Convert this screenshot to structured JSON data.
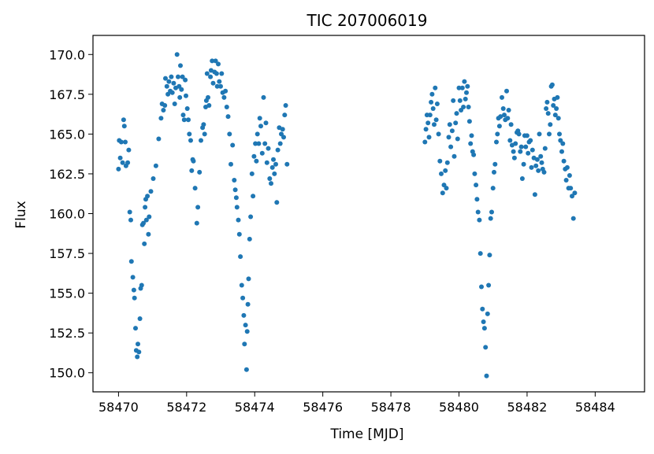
{
  "chart_data": {
    "type": "scatter",
    "title": "TIC 207006019",
    "xlabel": "Time [MJD]",
    "ylabel": "Flux",
    "xlim": [
      58469.25,
      58485.45
    ],
    "ylim": [
      148.8,
      171.2
    ],
    "x_ticks": [
      58470,
      58472,
      58474,
      58476,
      58478,
      58480,
      58482,
      58484
    ],
    "y_ticks": [
      150.0,
      152.5,
      155.0,
      157.5,
      160.0,
      162.5,
      165.0,
      167.5,
      170.0
    ],
    "x_tick_labels": [
      "58470",
      "58472",
      "58474",
      "58476",
      "58478",
      "58480",
      "58482",
      "58484"
    ],
    "y_tick_labels": [
      "150.0",
      "152.5",
      "155.0",
      "157.5",
      "160.0",
      "162.5",
      "165.0",
      "167.5",
      "170.0"
    ],
    "grid": false,
    "legend": "none",
    "marker_color": "#1f77b4",
    "series": [
      {
        "points": [
          [
            58470.0,
            162.8
          ],
          [
            58470.02,
            164.6
          ],
          [
            58470.05,
            163.5
          ],
          [
            58470.08,
            164.5
          ],
          [
            58470.12,
            163.2
          ],
          [
            58470.15,
            165.9
          ],
          [
            58470.17,
            165.5
          ],
          [
            58470.2,
            164.5
          ],
          [
            58470.22,
            163.0
          ],
          [
            58470.27,
            163.2
          ],
          [
            58470.3,
            164.0
          ],
          [
            58470.33,
            160.1
          ],
          [
            58470.36,
            159.6
          ],
          [
            58470.38,
            157.0
          ],
          [
            58470.42,
            156.0
          ],
          [
            58470.45,
            155.2
          ],
          [
            58470.47,
            154.7
          ],
          [
            58470.5,
            152.8
          ],
          [
            58470.52,
            151.4
          ],
          [
            58470.55,
            151.0
          ],
          [
            58470.57,
            151.8
          ],
          [
            58470.6,
            151.3
          ],
          [
            58470.63,
            153.4
          ],
          [
            58470.65,
            155.3
          ],
          [
            58470.68,
            155.5
          ],
          [
            58470.7,
            159.3
          ],
          [
            58470.73,
            159.4
          ],
          [
            58470.76,
            158.1
          ],
          [
            58470.78,
            160.4
          ],
          [
            58470.8,
            160.9
          ],
          [
            58470.82,
            159.6
          ],
          [
            58470.85,
            161.1
          ],
          [
            58470.88,
            158.7
          ],
          [
            58470.9,
            159.8
          ],
          [
            58470.95,
            161.4
          ],
          [
            58471.02,
            162.2
          ],
          [
            58471.1,
            163.0
          ],
          [
            58471.18,
            164.7
          ],
          [
            58471.25,
            166.0
          ],
          [
            58471.28,
            166.9
          ],
          [
            58471.32,
            166.5
          ],
          [
            58471.36,
            166.8
          ],
          [
            58471.38,
            168.5
          ],
          [
            58471.42,
            168.0
          ],
          [
            58471.45,
            167.5
          ],
          [
            58471.48,
            168.3
          ],
          [
            58471.52,
            167.7
          ],
          [
            58471.55,
            168.6
          ],
          [
            58471.58,
            167.6
          ],
          [
            58471.62,
            168.2
          ],
          [
            58471.65,
            166.9
          ],
          [
            58471.68,
            167.9
          ],
          [
            58471.72,
            170.0
          ],
          [
            58471.75,
            168.6
          ],
          [
            58471.78,
            168.0
          ],
          [
            58471.8,
            167.3
          ],
          [
            58471.82,
            169.3
          ],
          [
            58471.85,
            167.8
          ],
          [
            58471.88,
            168.6
          ],
          [
            58471.9,
            166.2
          ],
          [
            58471.93,
            165.9
          ],
          [
            58471.96,
            168.4
          ],
          [
            58471.98,
            167.4
          ],
          [
            58472.02,
            166.6
          ],
          [
            58472.05,
            165.9
          ],
          [
            58472.08,
            165.0
          ],
          [
            58472.12,
            164.6
          ],
          [
            58472.15,
            162.7
          ],
          [
            58472.18,
            163.4
          ],
          [
            58472.2,
            163.3
          ],
          [
            58472.25,
            161.6
          ],
          [
            58472.3,
            159.4
          ],
          [
            58472.33,
            160.4
          ],
          [
            58472.38,
            162.6
          ],
          [
            58472.42,
            164.6
          ],
          [
            58472.47,
            165.4
          ],
          [
            58472.5,
            165.6
          ],
          [
            58472.53,
            165.0
          ],
          [
            58472.56,
            166.7
          ],
          [
            58472.58,
            167.1
          ],
          [
            58472.6,
            168.8
          ],
          [
            58472.63,
            167.3
          ],
          [
            58472.66,
            166.8
          ],
          [
            58472.7,
            168.6
          ],
          [
            58472.72,
            169.0
          ],
          [
            58472.75,
            169.6
          ],
          [
            58472.78,
            168.2
          ],
          [
            58472.82,
            168.9
          ],
          [
            58472.85,
            169.6
          ],
          [
            58472.88,
            168.8
          ],
          [
            58472.9,
            168.0
          ],
          [
            58472.93,
            169.4
          ],
          [
            58472.96,
            168.3
          ],
          [
            58473.0,
            168.0
          ],
          [
            58473.03,
            168.8
          ],
          [
            58473.06,
            167.6
          ],
          [
            58473.1,
            167.3
          ],
          [
            58473.14,
            167.7
          ],
          [
            58473.18,
            166.7
          ],
          [
            58473.22,
            166.1
          ],
          [
            58473.26,
            165.0
          ],
          [
            58473.3,
            163.1
          ],
          [
            58473.35,
            164.3
          ],
          [
            58473.4,
            162.1
          ],
          [
            58473.43,
            161.5
          ],
          [
            58473.46,
            161.0
          ],
          [
            58473.48,
            160.4
          ],
          [
            58473.52,
            159.6
          ],
          [
            58473.55,
            158.7
          ],
          [
            58473.58,
            157.3
          ],
          [
            58473.62,
            155.5
          ],
          [
            58473.65,
            154.7
          ],
          [
            58473.68,
            153.6
          ],
          [
            58473.7,
            151.8
          ],
          [
            58473.73,
            153.0
          ],
          [
            58473.76,
            150.2
          ],
          [
            58473.78,
            152.6
          ],
          [
            58473.8,
            154.3
          ],
          [
            58473.82,
            155.9
          ],
          [
            58473.85,
            158.4
          ],
          [
            58473.88,
            159.8
          ],
          [
            58473.92,
            162.5
          ],
          [
            58473.95,
            161.1
          ],
          [
            58473.98,
            163.6
          ],
          [
            58474.02,
            164.4
          ],
          [
            58474.05,
            163.3
          ],
          [
            58474.08,
            165.0
          ],
          [
            58474.12,
            164.4
          ],
          [
            58474.15,
            166.0
          ],
          [
            58474.18,
            165.5
          ],
          [
            58474.22,
            163.8
          ],
          [
            58474.26,
            167.3
          ],
          [
            58474.3,
            164.4
          ],
          [
            58474.33,
            165.7
          ],
          [
            58474.36,
            163.2
          ],
          [
            58474.4,
            164.1
          ],
          [
            58474.44,
            162.2
          ],
          [
            58474.48,
            161.9
          ],
          [
            58474.52,
            162.9
          ],
          [
            58474.55,
            163.4
          ],
          [
            58474.58,
            162.5
          ],
          [
            58474.62,
            163.1
          ],
          [
            58474.65,
            160.7
          ],
          [
            58474.68,
            164.0
          ],
          [
            58474.72,
            165.4
          ],
          [
            58474.75,
            164.4
          ],
          [
            58474.78,
            165.0
          ],
          [
            58474.82,
            165.3
          ],
          [
            58474.85,
            164.8
          ],
          [
            58474.88,
            166.2
          ],
          [
            58474.91,
            166.8
          ],
          [
            58474.95,
            163.1
          ],
          [
            58479.0,
            164.5
          ],
          [
            58479.03,
            165.3
          ],
          [
            58479.06,
            166.2
          ],
          [
            58479.09,
            165.7
          ],
          [
            58479.12,
            164.8
          ],
          [
            58479.15,
            166.2
          ],
          [
            58479.18,
            167.0
          ],
          [
            58479.21,
            167.5
          ],
          [
            58479.24,
            166.6
          ],
          [
            58479.27,
            165.6
          ],
          [
            58479.3,
            167.9
          ],
          [
            58479.33,
            165.9
          ],
          [
            58479.36,
            166.9
          ],
          [
            58479.4,
            165.0
          ],
          [
            58479.44,
            163.3
          ],
          [
            58479.48,
            162.5
          ],
          [
            58479.52,
            161.3
          ],
          [
            58479.56,
            161.8
          ],
          [
            58479.6,
            162.7
          ],
          [
            58479.63,
            161.6
          ],
          [
            58479.66,
            163.2
          ],
          [
            58479.7,
            164.8
          ],
          [
            58479.73,
            165.6
          ],
          [
            58479.76,
            164.2
          ],
          [
            58479.8,
            165.2
          ],
          [
            58479.83,
            167.1
          ],
          [
            58479.86,
            163.6
          ],
          [
            58479.9,
            165.7
          ],
          [
            58479.93,
            166.3
          ],
          [
            58479.96,
            164.7
          ],
          [
            58480.0,
            167.9
          ],
          [
            58480.03,
            167.1
          ],
          [
            58480.06,
            166.5
          ],
          [
            58480.1,
            167.9
          ],
          [
            58480.13,
            166.7
          ],
          [
            58480.16,
            168.3
          ],
          [
            58480.19,
            167.2
          ],
          [
            58480.22,
            167.6
          ],
          [
            58480.25,
            168.0
          ],
          [
            58480.28,
            166.7
          ],
          [
            58480.31,
            165.8
          ],
          [
            58480.34,
            164.4
          ],
          [
            58480.37,
            164.9
          ],
          [
            58480.4,
            163.9
          ],
          [
            58480.43,
            163.7
          ],
          [
            58480.46,
            162.5
          ],
          [
            58480.5,
            161.8
          ],
          [
            58480.53,
            160.9
          ],
          [
            58480.56,
            160.1
          ],
          [
            58480.6,
            159.6
          ],
          [
            58480.63,
            157.5
          ],
          [
            58480.66,
            155.4
          ],
          [
            58480.69,
            154.0
          ],
          [
            58480.72,
            153.2
          ],
          [
            58480.75,
            152.8
          ],
          [
            58480.78,
            151.6
          ],
          [
            58480.81,
            149.8
          ],
          [
            58480.84,
            153.7
          ],
          [
            58480.87,
            155.5
          ],
          [
            58480.9,
            157.4
          ],
          [
            58480.93,
            159.7
          ],
          [
            58480.96,
            160.1
          ],
          [
            58481.0,
            161.6
          ],
          [
            58481.03,
            162.6
          ],
          [
            58481.06,
            163.1
          ],
          [
            58481.1,
            164.5
          ],
          [
            58481.13,
            165.0
          ],
          [
            58481.16,
            166.0
          ],
          [
            58481.19,
            165.5
          ],
          [
            58481.22,
            166.1
          ],
          [
            58481.26,
            167.3
          ],
          [
            58481.3,
            166.6
          ],
          [
            58481.33,
            166.2
          ],
          [
            58481.36,
            165.9
          ],
          [
            58481.4,
            167.7
          ],
          [
            58481.43,
            166.0
          ],
          [
            58481.46,
            166.5
          ],
          [
            58481.5,
            164.6
          ],
          [
            58481.53,
            165.6
          ],
          [
            58481.56,
            164.3
          ],
          [
            58481.6,
            163.9
          ],
          [
            58481.63,
            163.5
          ],
          [
            58481.66,
            164.4
          ],
          [
            58481.7,
            165.1
          ],
          [
            58481.73,
            165.2
          ],
          [
            58481.76,
            165.0
          ],
          [
            58481.8,
            163.9
          ],
          [
            58481.83,
            164.2
          ],
          [
            58481.86,
            162.2
          ],
          [
            58481.9,
            163.1
          ],
          [
            58481.93,
            164.9
          ],
          [
            58481.96,
            164.2
          ],
          [
            58482.0,
            164.9
          ],
          [
            58482.03,
            163.8
          ],
          [
            58482.06,
            164.5
          ],
          [
            58482.1,
            164.6
          ],
          [
            58482.13,
            162.9
          ],
          [
            58482.16,
            164.0
          ],
          [
            58482.2,
            163.5
          ],
          [
            58482.23,
            161.2
          ],
          [
            58482.26,
            163.0
          ],
          [
            58482.3,
            163.4
          ],
          [
            58482.33,
            162.7
          ],
          [
            58482.36,
            165.0
          ],
          [
            58482.4,
            163.6
          ],
          [
            58482.43,
            163.2
          ],
          [
            58482.46,
            162.8
          ],
          [
            58482.5,
            162.6
          ],
          [
            58482.53,
            164.1
          ],
          [
            58482.56,
            166.6
          ],
          [
            58482.59,
            167.0
          ],
          [
            58482.62,
            166.3
          ],
          [
            58482.65,
            165.0
          ],
          [
            58482.68,
            165.6
          ],
          [
            58482.71,
            168.0
          ],
          [
            58482.74,
            168.1
          ],
          [
            58482.77,
            166.8
          ],
          [
            58482.8,
            167.2
          ],
          [
            58482.83,
            166.2
          ],
          [
            58482.86,
            166.6
          ],
          [
            58482.89,
            167.3
          ],
          [
            58482.92,
            166.0
          ],
          [
            58482.95,
            165.0
          ],
          [
            58482.98,
            164.6
          ],
          [
            58483.02,
            163.9
          ],
          [
            58483.05,
            164.4
          ],
          [
            58483.08,
            163.3
          ],
          [
            58483.12,
            162.8
          ],
          [
            58483.15,
            162.1
          ],
          [
            58483.18,
            162.9
          ],
          [
            58483.22,
            161.6
          ],
          [
            58483.25,
            162.4
          ],
          [
            58483.28,
            161.6
          ],
          [
            58483.32,
            161.1
          ],
          [
            58483.36,
            159.7
          ],
          [
            58483.4,
            161.3
          ]
        ]
      }
    ]
  }
}
